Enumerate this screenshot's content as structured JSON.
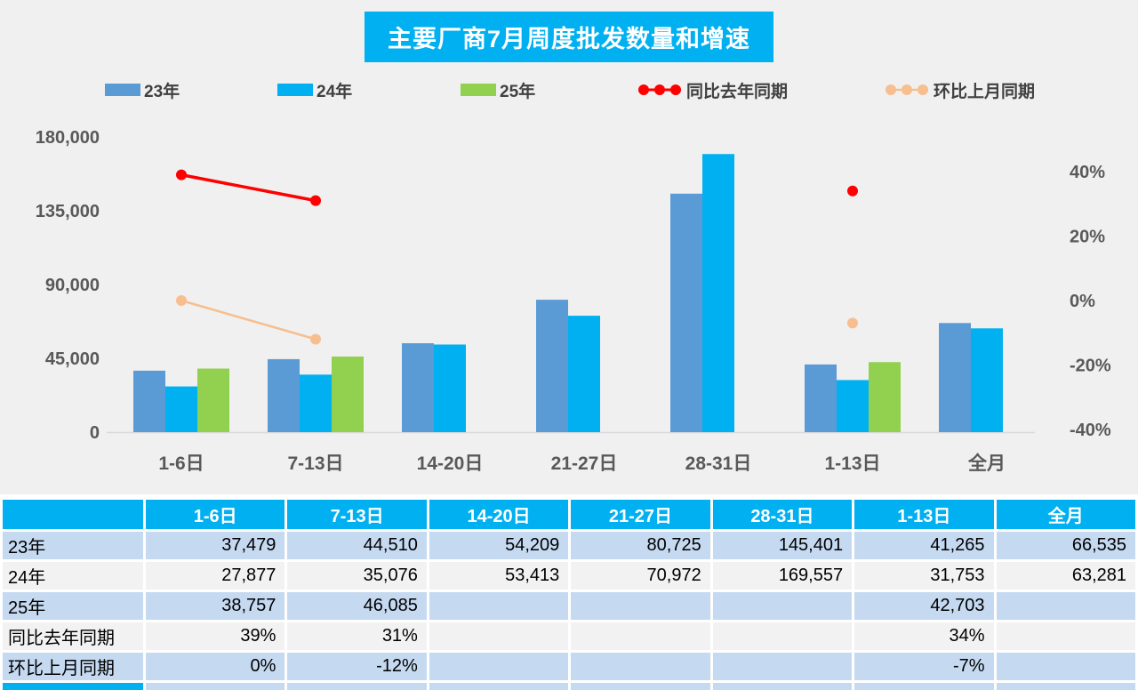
{
  "title": "主要厂商7月周度批发数量和增速",
  "colors": {
    "accent": "#00B0F0",
    "chart_bg": "#F0F0F0",
    "axis_text": "#595959",
    "legend_text": "#404040",
    "row_blue": "#C5D9F1",
    "row_gray": "#F2F2F2",
    "cutoff_left": "#00B0F0",
    "bar_23": "#5B9BD5",
    "bar_24": "#00B0F0",
    "bar_25": "#92D050",
    "yoy_red": "#FF0000",
    "mom_peach": "#F7BE8F"
  },
  "legend": [
    {
      "label": "23年",
      "color": "#5B9BD5",
      "type": "bar"
    },
    {
      "label": "24年",
      "color": "#00B0F0",
      "type": "bar"
    },
    {
      "label": "25年",
      "color": "#92D050",
      "type": "bar"
    },
    {
      "label": "同比去年同期",
      "color": "#FF0000",
      "type": "line"
    },
    {
      "label": "环比上月同期",
      "color": "#F7BE8F",
      "type": "line"
    }
  ],
  "chart_data": {
    "type": "bar+line",
    "categories": [
      "1-6日",
      "7-13日",
      "14-20日",
      "21-27日",
      "28-31日",
      "1-13日",
      "全月"
    ],
    "series": [
      {
        "name": "23年",
        "type": "bar",
        "axis": "left",
        "color": "#5B9BD5",
        "values": [
          37479,
          44510,
          54209,
          80725,
          145401,
          41265,
          66535
        ]
      },
      {
        "name": "24年",
        "type": "bar",
        "axis": "left",
        "color": "#00B0F0",
        "values": [
          27877,
          35076,
          53413,
          70972,
          169557,
          31753,
          63281
        ]
      },
      {
        "name": "25年",
        "type": "bar",
        "axis": "left",
        "color": "#92D050",
        "values": [
          38757,
          46085,
          null,
          null,
          null,
          42703,
          null
        ]
      },
      {
        "name": "同比去年同期",
        "type": "line",
        "axis": "right",
        "color": "#FF0000",
        "unit": "%",
        "values": [
          39,
          31,
          null,
          null,
          null,
          34,
          null
        ]
      },
      {
        "name": "环比上月同期",
        "type": "line",
        "axis": "right",
        "color": "#F7BE8F",
        "unit": "%",
        "values": [
          0,
          -12,
          null,
          null,
          null,
          -7,
          null
        ]
      }
    ],
    "left_axis": {
      "tick_labels": [
        "180,000",
        "135,000",
        "90,000",
        "45,000",
        "0"
      ],
      "tick_values": [
        180000,
        135000,
        90000,
        45000,
        0
      ],
      "min": 0,
      "max": 180000
    },
    "right_axis": {
      "tick_labels": [
        "40%",
        "20%",
        "0%",
        "-20%",
        "-40%"
      ],
      "tick_values": [
        40,
        20,
        0,
        -20,
        -40
      ],
      "min": -40,
      "max": 40
    },
    "grid": false,
    "legend_position": "top"
  },
  "table": {
    "header": [
      "",
      "1-6日",
      "7-13日",
      "14-20日",
      "21-27日",
      "28-31日",
      "1-13日",
      "全月"
    ],
    "rows": [
      {
        "label": "23年",
        "cells": [
          "37,479",
          "44,510",
          "54,209",
          "80,725",
          "145,401",
          "41,265",
          "66,535"
        ]
      },
      {
        "label": "24年",
        "cells": [
          "27,877",
          "35,076",
          "53,413",
          "70,972",
          "169,557",
          "31,753",
          "63,281"
        ]
      },
      {
        "label": "25年",
        "cells": [
          "38,757",
          "46,085",
          "",
          "",
          "",
          "42,703",
          ""
        ]
      },
      {
        "label": "同比去年同期",
        "cells": [
          "39%",
          "31%",
          "",
          "",
          "",
          "34%",
          ""
        ]
      },
      {
        "label": "环比上月同期",
        "cells": [
          "0%",
          "-12%",
          "",
          "",
          "",
          "-7%",
          ""
        ]
      }
    ]
  }
}
